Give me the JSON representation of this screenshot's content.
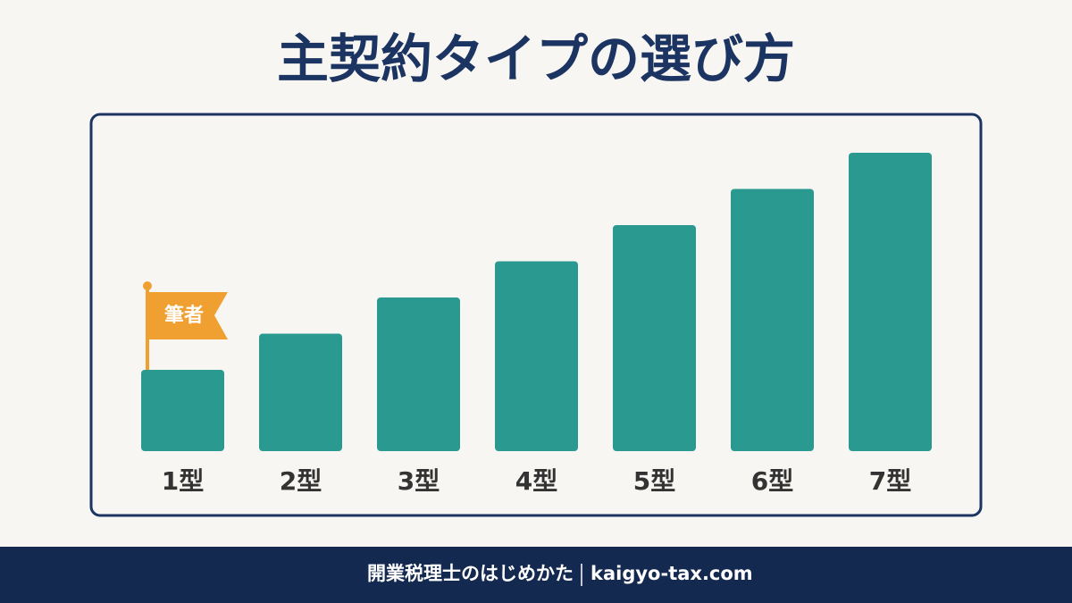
{
  "header": {
    "title": "主契約タイプの選び方"
  },
  "diagram": {
    "items": [
      "1型",
      "2型",
      "3型",
      "4型",
      "5型",
      "6型",
      "7型"
    ],
    "flag": "筆者"
  },
  "footer": {
    "site_name": "開業税理士のはじめかた",
    "domain": "kaigyo-tax.com"
  }
}
